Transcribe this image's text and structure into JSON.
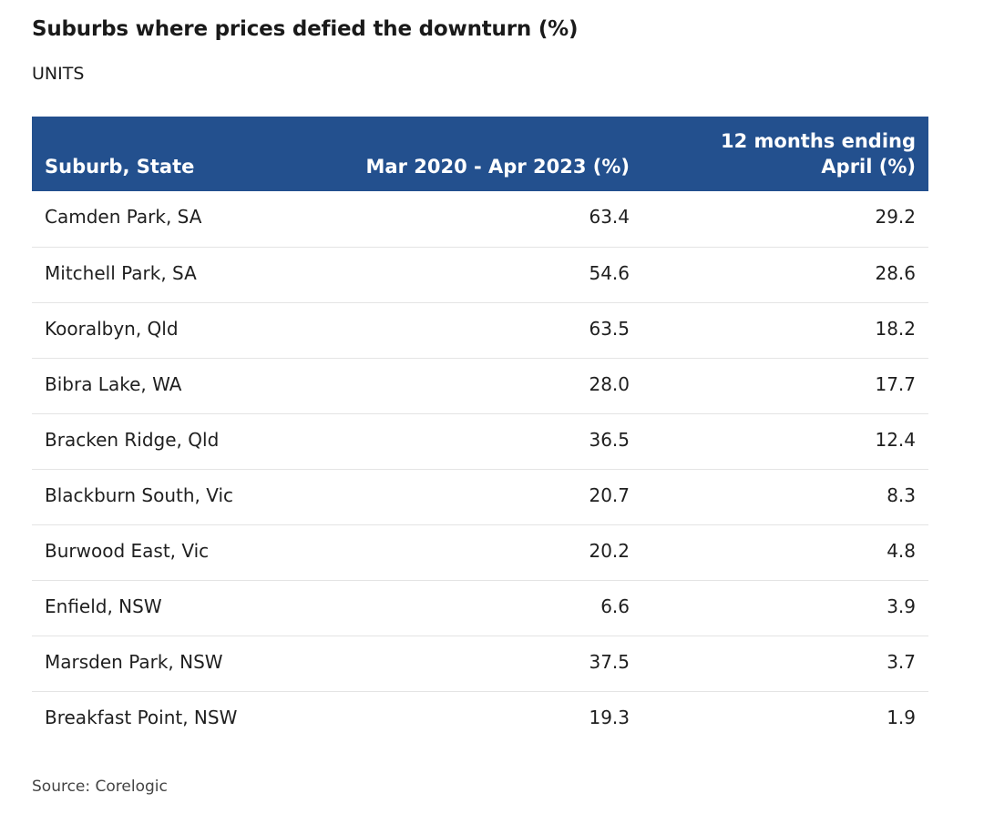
{
  "chart_data": {
    "type": "table",
    "title": "Suburbs where prices defied the downturn (%)",
    "subtitle": "UNITS",
    "columns": [
      "Suburb, State",
      "Mar 2020 - Apr 2023 (%)",
      "12 months ending April (%)"
    ],
    "rows": [
      {
        "suburb": "Camden Park, SA",
        "mar2020_apr2023": "63.4",
        "twelve_months": "29.2"
      },
      {
        "suburb": "Mitchell Park, SA",
        "mar2020_apr2023": "54.6",
        "twelve_months": "28.6"
      },
      {
        "suburb": "Kooralbyn, Qld",
        "mar2020_apr2023": "63.5",
        "twelve_months": "18.2"
      },
      {
        "suburb": "Bibra Lake, WA",
        "mar2020_apr2023": "28.0",
        "twelve_months": "17.7"
      },
      {
        "suburb": "Bracken Ridge, Qld",
        "mar2020_apr2023": "36.5",
        "twelve_months": "12.4"
      },
      {
        "suburb": "Blackburn South, Vic",
        "mar2020_apr2023": "20.7",
        "twelve_months": "8.3"
      },
      {
        "suburb": "Burwood East, Vic",
        "mar2020_apr2023": "20.2",
        "twelve_months": "4.8"
      },
      {
        "suburb": "Enfield, NSW",
        "mar2020_apr2023": "6.6",
        "twelve_months": "3.9"
      },
      {
        "suburb": "Marsden Park, NSW",
        "mar2020_apr2023": "37.5",
        "twelve_months": "3.7"
      },
      {
        "suburb": "Breakfast Point, NSW",
        "mar2020_apr2023": "19.3",
        "twelve_months": "1.9"
      }
    ],
    "source": "Source: Corelogic"
  },
  "colors": {
    "header_background": "#23508e",
    "header_text": "#ffffff",
    "row_divider": "#e4e4e4"
  }
}
